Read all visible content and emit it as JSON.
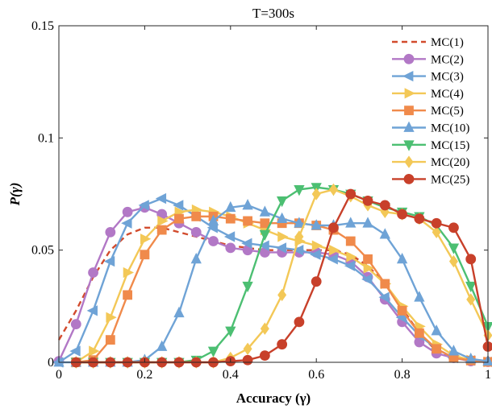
{
  "chart_data": {
    "type": "line",
    "title": "T=300s",
    "xlabel": "Accuracy (γ)",
    "ylabel": "P(γ)",
    "xlim": [
      0,
      1
    ],
    "ylim": [
      0,
      0.15
    ],
    "xticks": [
      0,
      0.2,
      0.4,
      0.6,
      0.8,
      1
    ],
    "xtick_labels": [
      "0",
      "0.2",
      "0.4",
      "0.6",
      "0.8",
      "1"
    ],
    "yticks": [
      0,
      0.05,
      0.1,
      0.15
    ],
    "ytick_labels": [
      "0",
      "0.05",
      "0.1",
      "0.15"
    ],
    "grid": false,
    "legend_position": "top-right",
    "series": [
      {
        "name": "MC(1)",
        "color": "#d24b2d",
        "marker": "none",
        "dashed": true,
        "x": [
          0,
          0.04,
          0.08,
          0.12,
          0.16,
          0.2,
          0.24,
          0.28,
          0.32,
          0.36,
          0.4,
          0.44,
          0.48,
          0.52,
          0.56,
          0.6,
          0.64,
          0.68,
          0.72,
          0.76,
          0.8,
          0.84,
          0.88,
          0.92,
          0.96,
          1.0
        ],
        "y": [
          0.01,
          0.023,
          0.038,
          0.05,
          0.057,
          0.06,
          0.06,
          0.058,
          0.056,
          0.054,
          0.052,
          0.051,
          0.05,
          0.05,
          0.05,
          0.05,
          0.05,
          0.048,
          0.043,
          0.035,
          0.024,
          0.013,
          0.005,
          0.002,
          0.0005,
          0.0002
        ]
      },
      {
        "name": "MC(2)",
        "color": "#b278c6",
        "marker": "circle",
        "dashed": false,
        "x": [
          0,
          0.04,
          0.08,
          0.12,
          0.16,
          0.2,
          0.24,
          0.28,
          0.32,
          0.36,
          0.4,
          0.44,
          0.48,
          0.52,
          0.56,
          0.6,
          0.64,
          0.68,
          0.72,
          0.76,
          0.8,
          0.84,
          0.88,
          0.92,
          0.96,
          1.0
        ],
        "y": [
          0.0005,
          0.017,
          0.04,
          0.058,
          0.067,
          0.069,
          0.066,
          0.062,
          0.058,
          0.054,
          0.051,
          0.05,
          0.049,
          0.049,
          0.049,
          0.049,
          0.048,
          0.045,
          0.038,
          0.028,
          0.018,
          0.009,
          0.004,
          0.002,
          0.0005,
          0.0002
        ]
      },
      {
        "name": "MC(3)",
        "color": "#6fa3d6",
        "marker": "triangle-left",
        "dashed": false,
        "x": [
          0,
          0.04,
          0.08,
          0.12,
          0.16,
          0.2,
          0.24,
          0.28,
          0.32,
          0.36,
          0.4,
          0.44,
          0.48,
          0.52,
          0.56,
          0.6,
          0.64,
          0.68,
          0.72,
          0.76,
          0.8,
          0.84,
          0.88,
          0.92,
          0.96,
          1.0
        ],
        "y": [
          0.0,
          0.005,
          0.023,
          0.045,
          0.062,
          0.07,
          0.073,
          0.07,
          0.065,
          0.06,
          0.056,
          0.053,
          0.052,
          0.051,
          0.05,
          0.048,
          0.046,
          0.043,
          0.037,
          0.029,
          0.02,
          0.012,
          0.006,
          0.002,
          0.0008,
          0.0002
        ]
      },
      {
        "name": "MC(4)",
        "color": "#f3c857",
        "marker": "triangle-right",
        "dashed": false,
        "x": [
          0.04,
          0.08,
          0.12,
          0.16,
          0.2,
          0.24,
          0.28,
          0.32,
          0.36,
          0.4,
          0.44,
          0.48,
          0.52,
          0.56,
          0.6,
          0.64,
          0.68,
          0.72,
          0.76,
          0.8,
          0.84,
          0.88,
          0.92,
          0.96,
          1.0
        ],
        "y": [
          0.0,
          0.005,
          0.02,
          0.04,
          0.055,
          0.063,
          0.067,
          0.068,
          0.067,
          0.065,
          0.062,
          0.059,
          0.056,
          0.054,
          0.052,
          0.05,
          0.047,
          0.042,
          0.035,
          0.025,
          0.016,
          0.008,
          0.003,
          0.001,
          0.0002
        ]
      },
      {
        "name": "MC(5)",
        "color": "#f08a4b",
        "marker": "square",
        "dashed": false,
        "x": [
          0.04,
          0.08,
          0.12,
          0.16,
          0.2,
          0.24,
          0.28,
          0.32,
          0.36,
          0.4,
          0.44,
          0.48,
          0.52,
          0.56,
          0.6,
          0.64,
          0.68,
          0.72,
          0.76,
          0.8,
          0.84,
          0.88,
          0.92,
          0.96,
          1.0
        ],
        "y": [
          0.0,
          0.001,
          0.01,
          0.03,
          0.048,
          0.059,
          0.064,
          0.065,
          0.065,
          0.064,
          0.063,
          0.062,
          0.062,
          0.062,
          0.061,
          0.059,
          0.054,
          0.046,
          0.035,
          0.023,
          0.013,
          0.006,
          0.002,
          0.0008,
          0.0002
        ]
      },
      {
        "name": "MC(10)",
        "color": "#6fa3d6",
        "marker": "triangle-up",
        "dashed": false,
        "x": [
          0,
          0.04,
          0.08,
          0.12,
          0.16,
          0.2,
          0.24,
          0.28,
          0.32,
          0.36,
          0.4,
          0.44,
          0.48,
          0.52,
          0.56,
          0.6,
          0.64,
          0.68,
          0.72,
          0.76,
          0.8,
          0.84,
          0.88,
          0.92,
          0.96,
          1.0
        ],
        "y": [
          0.0,
          0.0,
          0.0,
          0.0,
          0.0,
          0.001,
          0.007,
          0.022,
          0.046,
          0.063,
          0.069,
          0.07,
          0.067,
          0.064,
          0.062,
          0.061,
          0.061,
          0.062,
          0.062,
          0.057,
          0.046,
          0.029,
          0.014,
          0.005,
          0.0015,
          0.0005
        ]
      },
      {
        "name": "MC(15)",
        "color": "#4cbf72",
        "marker": "triangle-down",
        "dashed": false,
        "x": [
          0.04,
          0.08,
          0.12,
          0.16,
          0.2,
          0.24,
          0.28,
          0.32,
          0.36,
          0.4,
          0.44,
          0.48,
          0.52,
          0.56,
          0.6,
          0.64,
          0.68,
          0.72,
          0.76,
          0.8,
          0.84,
          0.88,
          0.92,
          0.96,
          1.0
        ],
        "y": [
          0.0,
          0.0,
          0.0,
          0.0,
          0.0,
          0.0,
          0.0,
          0.001,
          0.005,
          0.014,
          0.034,
          0.057,
          0.072,
          0.077,
          0.078,
          0.077,
          0.075,
          0.072,
          0.069,
          0.067,
          0.065,
          0.061,
          0.051,
          0.034,
          0.016
        ]
      },
      {
        "name": "MC(20)",
        "color": "#f3c857",
        "marker": "diamond",
        "dashed": false,
        "x": [
          0.04,
          0.08,
          0.12,
          0.16,
          0.2,
          0.24,
          0.28,
          0.32,
          0.36,
          0.4,
          0.44,
          0.48,
          0.52,
          0.56,
          0.6,
          0.64,
          0.68,
          0.72,
          0.76,
          0.8,
          0.84,
          0.88,
          0.92,
          0.96,
          1.0
        ],
        "y": [
          0.0,
          0.0,
          0.0,
          0.0,
          0.0,
          0.0,
          0.0,
          0.0,
          0.0,
          0.002,
          0.006,
          0.015,
          0.03,
          0.056,
          0.075,
          0.077,
          0.074,
          0.07,
          0.067,
          0.066,
          0.064,
          0.058,
          0.045,
          0.028,
          0.012
        ]
      },
      {
        "name": "MC(25)",
        "color": "#c8402a",
        "marker": "circle",
        "dashed": false,
        "x": [
          0.04,
          0.08,
          0.12,
          0.16,
          0.2,
          0.24,
          0.28,
          0.32,
          0.36,
          0.4,
          0.44,
          0.48,
          0.52,
          0.56,
          0.6,
          0.64,
          0.68,
          0.72,
          0.76,
          0.8,
          0.84,
          0.88,
          0.92,
          0.96,
          1.0
        ],
        "y": [
          0.0,
          0.0,
          0.0,
          0.0,
          0.0,
          0.0,
          0.0,
          0.0,
          0.0,
          0.0005,
          0.001,
          0.003,
          0.008,
          0.018,
          0.036,
          0.06,
          0.075,
          0.072,
          0.07,
          0.066,
          0.064,
          0.062,
          0.06,
          0.046,
          0.007
        ]
      }
    ]
  }
}
